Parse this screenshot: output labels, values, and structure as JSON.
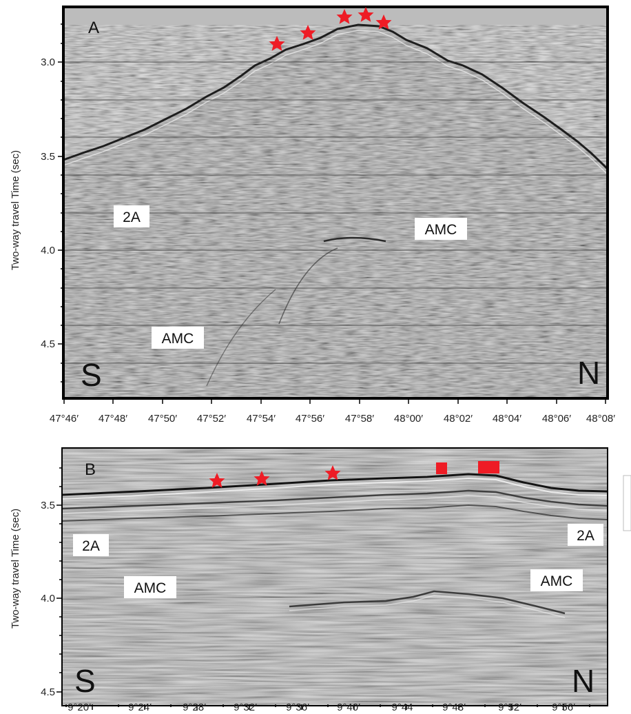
{
  "panels": [
    {
      "id": "A",
      "panel_label": "A",
      "ylabel": "Two-way travel Time (sec)",
      "yticks": [
        "3.0",
        "3.5",
        "4.0",
        "4.5"
      ],
      "xticks": [
        "47°46′",
        "47°48′",
        "47°50′",
        "47°52′",
        "47°54′",
        "47°56′",
        "47°58′",
        "48°00′",
        "48°02′",
        "48°04′",
        "48°06′",
        "48°08′"
      ],
      "direction_left": "S",
      "direction_right": "N",
      "annotations": [
        "2A",
        "AMC",
        "AMC"
      ],
      "star_count": 5,
      "colors": {
        "marker": "#ee1c25",
        "seismic_base": "#a8a8a8",
        "frame": "#000000"
      }
    },
    {
      "id": "B",
      "panel_label": "B",
      "ylabel": "Two-way travel Time (sec)",
      "yticks": [
        "3.5",
        "4.0",
        "4.5"
      ],
      "xticks": [
        "9°20′",
        "9°24′",
        "9°28′",
        "9°32′",
        "9°36′",
        "9°40′",
        "9°44",
        "9°48′",
        "9°52′",
        "9°56′"
      ],
      "direction_left": "S",
      "direction_right": "N",
      "annotations": [
        "2A",
        "2A",
        "AMC",
        "AMC"
      ],
      "star_count": 3,
      "square_count": 2,
      "colors": {
        "marker": "#ee1c25",
        "seismic_base": "#b4b4b4",
        "frame": "#000000"
      }
    }
  ]
}
